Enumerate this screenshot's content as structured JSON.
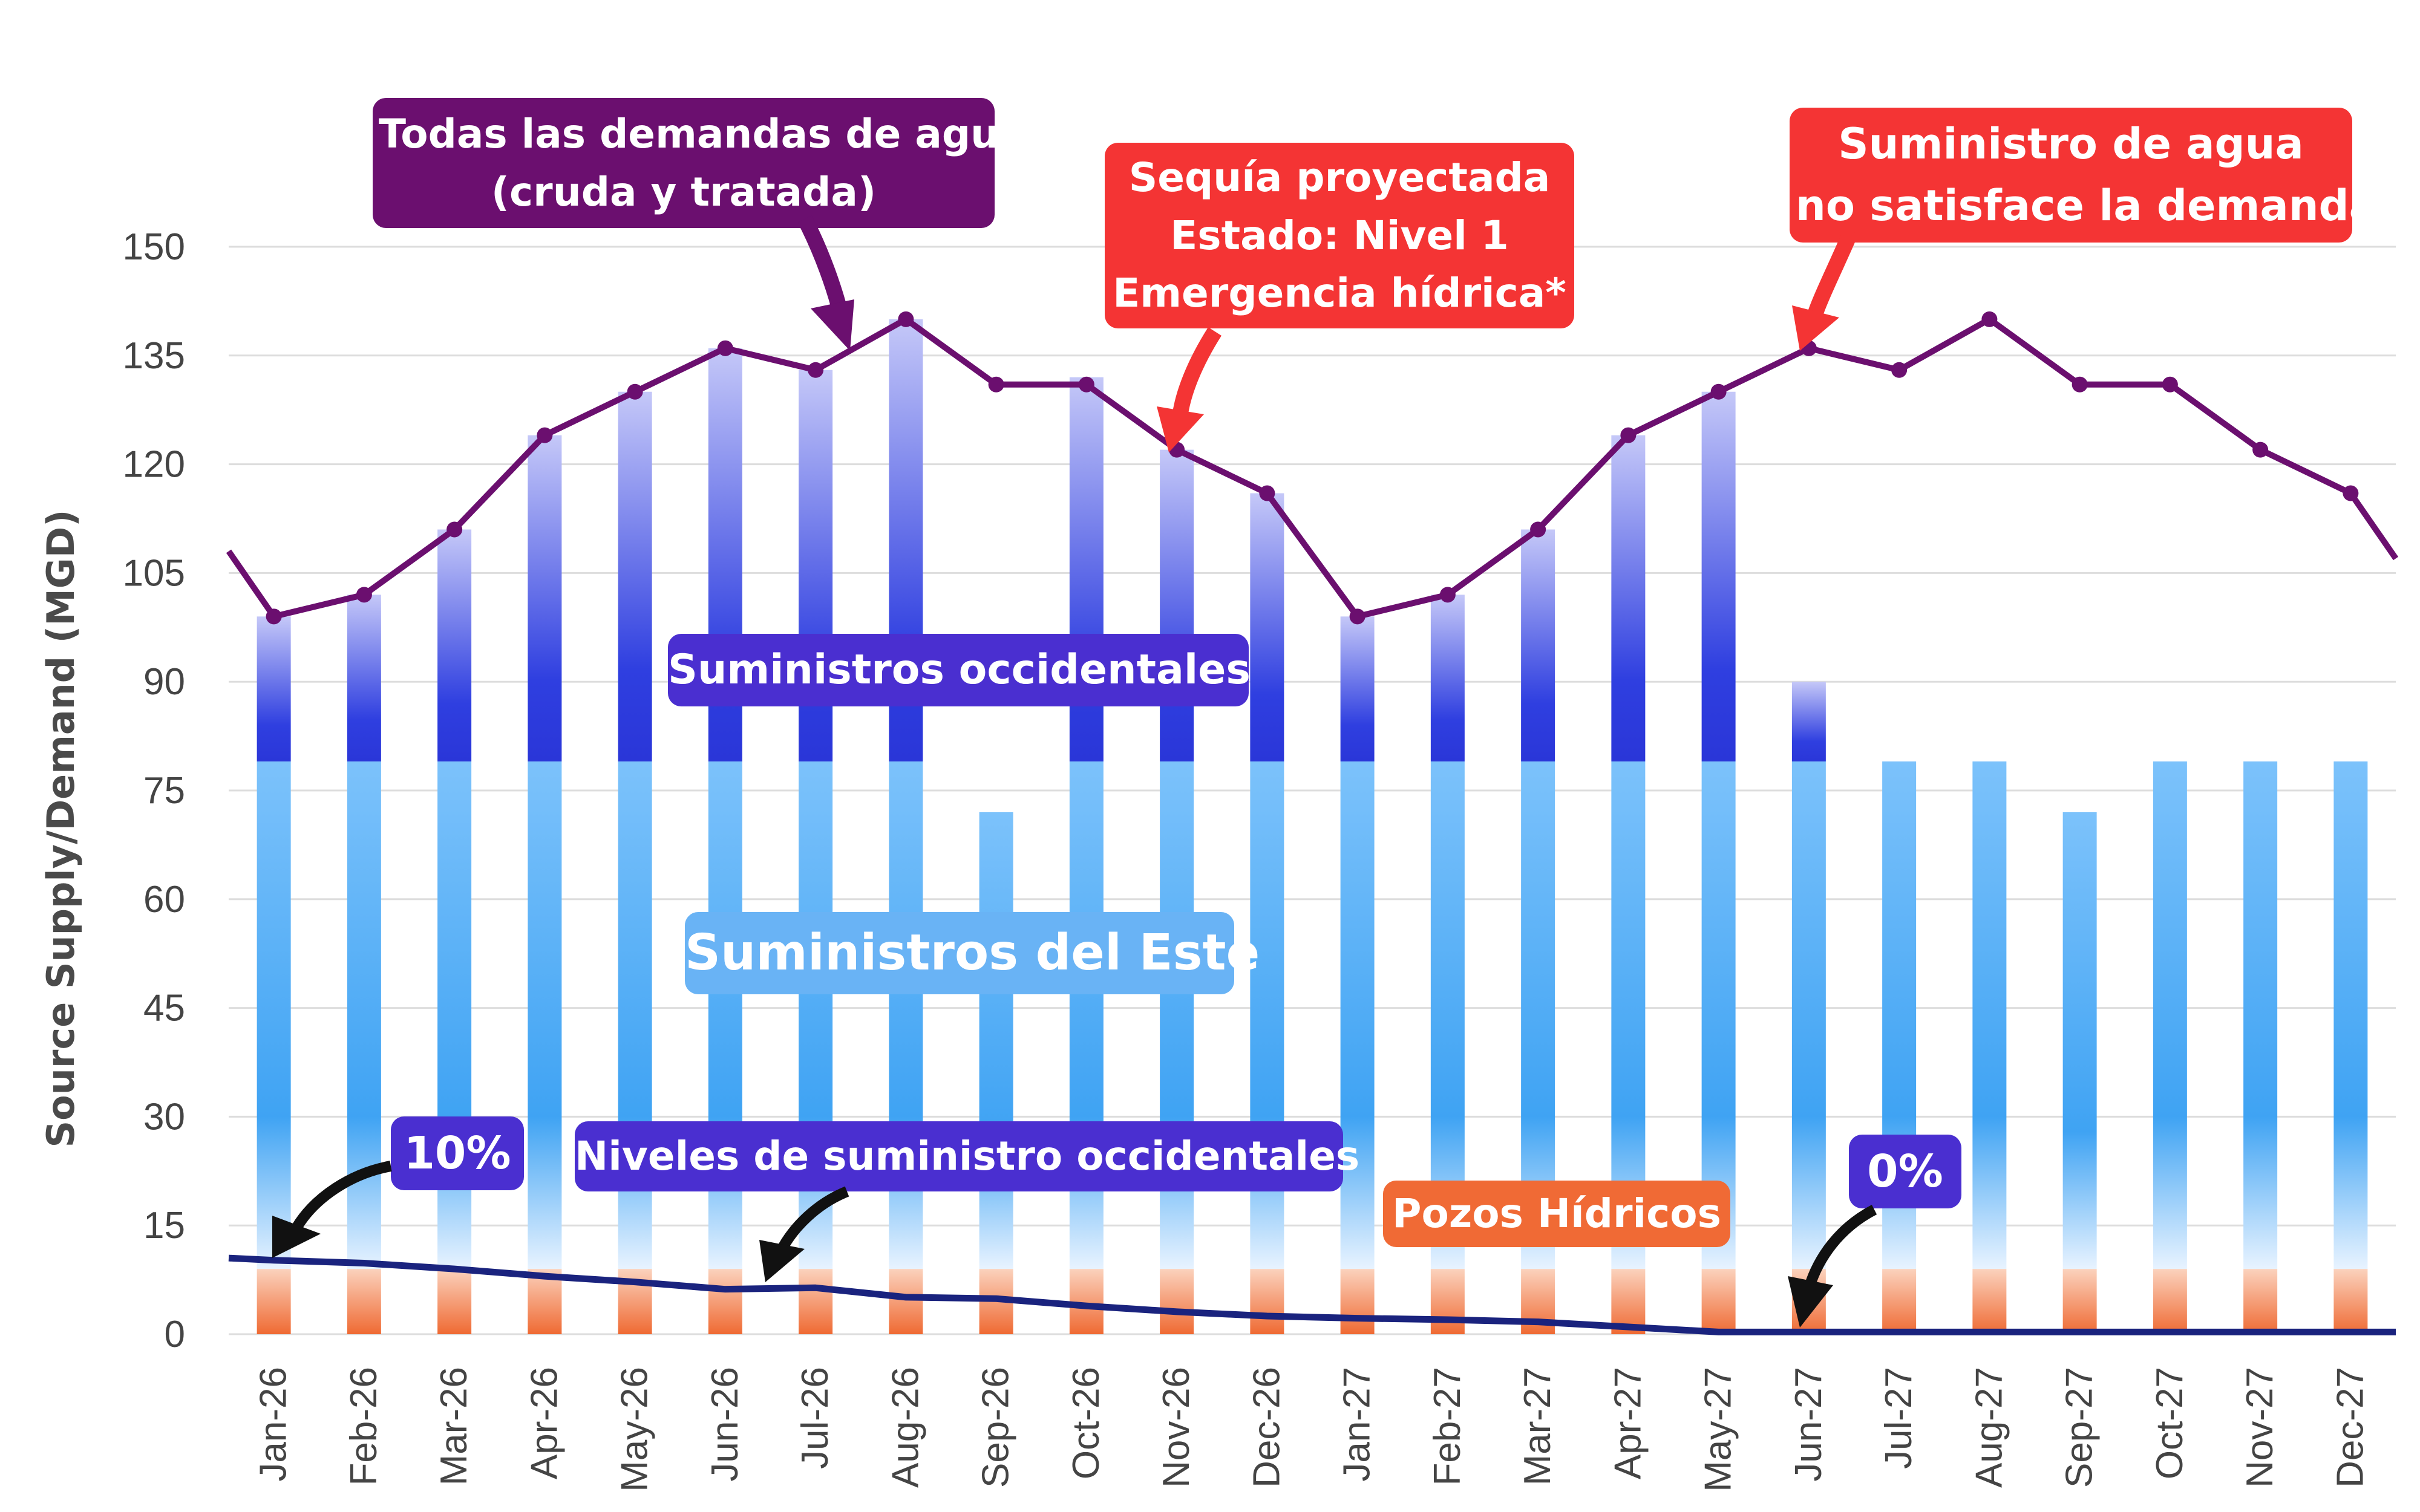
{
  "chart_data": {
    "type": "bar",
    "ylabel": "Source Supply/Demand (MGD)",
    "ylim": [
      0,
      150
    ],
    "yticks": [
      0,
      15,
      30,
      45,
      60,
      75,
      90,
      105,
      120,
      135,
      150
    ],
    "grid": true,
    "categories": [
      "Jan-26",
      "Feb-26",
      "Mar-26",
      "Apr-26",
      "May-26",
      "Jun-26",
      "Jul-26",
      "Aug-26",
      "Sep-26",
      "Oct-26",
      "Nov-26",
      "Dec-26",
      "Jan-27",
      "Feb-27",
      "Mar-27",
      "Apr-27",
      "May-27",
      "Jun-27",
      "Jul-27",
      "Aug-27",
      "Sep-27",
      "Oct-27",
      "Nov-27",
      "Dec-27"
    ],
    "series": [
      {
        "name": "Pozos Hídricos",
        "color": "#f06a35",
        "values": [
          9,
          9,
          9,
          9,
          9,
          9,
          9,
          9,
          9,
          9,
          9,
          9,
          9,
          9,
          9,
          9,
          9,
          9,
          9,
          9,
          9,
          9,
          9,
          9
        ]
      },
      {
        "name": "Suministros del Este",
        "color": "#42a5f5",
        "values": [
          70,
          70,
          70,
          70,
          70,
          70,
          70,
          70,
          63,
          70,
          70,
          70,
          70,
          70,
          70,
          70,
          70,
          70,
          70,
          70,
          63,
          70,
          70,
          70
        ]
      },
      {
        "name": "Suministros occidentales",
        "color": "#3344e0",
        "values": [
          20,
          23,
          32,
          45,
          51,
          57,
          54,
          61,
          0,
          53,
          43,
          37,
          20,
          23,
          32,
          45,
          51,
          11,
          0,
          0,
          0,
          0,
          0,
          0
        ]
      }
    ],
    "demand_line": {
      "name": "Todas las demandas de agua (cruda y tratada)",
      "color": "#6b0f6f",
      "start_value": 108,
      "end_value": 107,
      "values": [
        99,
        102,
        111,
        124,
        130,
        136,
        133,
        140,
        131,
        131,
        122,
        116,
        99,
        102,
        111,
        124,
        130,
        136,
        133,
        140,
        131,
        131,
        122,
        116
      ]
    },
    "western_level_line": {
      "name": "Niveles de suministro occidentales",
      "color": "#1a237e",
      "start_value": 10.5,
      "end_value": 0.3,
      "values": [
        10.2,
        9.8,
        9.0,
        8.0,
        7.2,
        6.2,
        6.4,
        5.1,
        4.9,
        3.9,
        3.1,
        2.5,
        2.2,
        2.0,
        1.7,
        1.0,
        0.3,
        0.3,
        0.3,
        0.3,
        0.3,
        0.3,
        0.3,
        0.3
      ]
    },
    "annotations": {
      "demand": [
        "Todas las demandas de agua",
        "(cruda y tratada)"
      ],
      "drought": [
        "Sequía proyectada",
        "Estado: Nivel 1",
        "Emergencia hídrica*"
      ],
      "shortfall": [
        "Suministro de agua",
        "no satisface la demanda"
      ],
      "western": "Suministros occidentales",
      "eastern": "Suministros del Este",
      "pct_start": "10%",
      "western_levels": "Niveles de suministro occidentales",
      "wells": "Pozos Hídricos",
      "pct_end": "0%"
    }
  }
}
